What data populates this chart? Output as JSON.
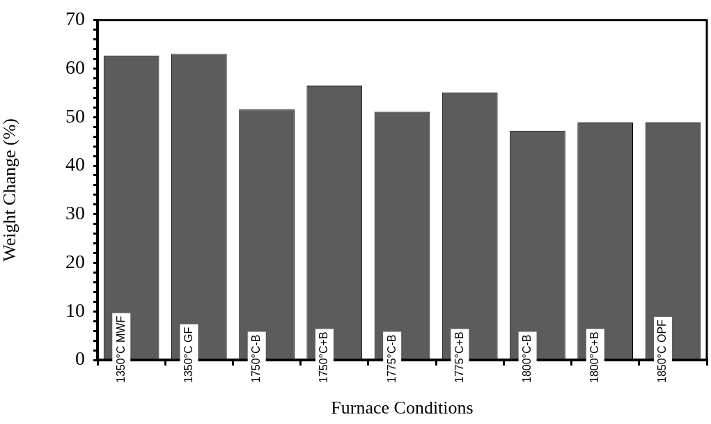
{
  "chart_data": {
    "type": "bar",
    "xlabel": "Furnace Conditions",
    "ylabel": "Weight Change (%)",
    "categories": [
      "1350°C MWF",
      "1350°C GF",
      "1750°C-B",
      "1750°C+B",
      "1775°C-B",
      "1775°C+B",
      "1800°C-B",
      "1800°C+B",
      "1850°C OPF"
    ],
    "values": [
      62.7,
      63.0,
      51.6,
      56.5,
      51.1,
      55.1,
      47.2,
      48.9,
      48.9
    ],
    "color": "#5c5c5c",
    "ylim": [
      0,
      70
    ],
    "yticks": [
      0,
      {
        "value": 2,
        "label": null
      },
      {
        "value": 4,
        "label": null
      },
      {
        "value": 6,
        "label": null
      },
      {
        "value": 8,
        "label": null
      },
      10,
      {
        "value": 12,
        "label": null
      },
      {
        "value": 14,
        "label": null
      },
      {
        "value": 16,
        "label": null
      },
      {
        "value": 18,
        "label": null
      },
      20,
      {
        "value": 22,
        "label": null
      },
      {
        "value": 24,
        "label": null
      },
      {
        "value": 26,
        "label": null
      },
      {
        "value": 28,
        "label": null
      },
      30,
      {
        "value": 32,
        "label": null
      },
      {
        "value": 34,
        "label": null
      },
      {
        "value": 36,
        "label": null
      },
      {
        "value": 38,
        "label": null
      },
      40,
      {
        "value": 42,
        "label": null
      },
      {
        "value": 44,
        "label": null
      },
      {
        "value": 46,
        "label": null
      },
      {
        "value": 48,
        "label": null
      },
      50,
      {
        "value": 52,
        "label": null
      },
      {
        "value": 54,
        "label": null
      },
      {
        "value": 56,
        "label": null
      },
      {
        "value": 58,
        "label": null
      },
      60,
      {
        "value": 62,
        "label": null
      },
      {
        "value": 64,
        "label": null
      },
      {
        "value": 66,
        "label": null
      },
      {
        "value": 68,
        "label": null
      },
      70
    ],
    "grid": false,
    "legend": false
  }
}
